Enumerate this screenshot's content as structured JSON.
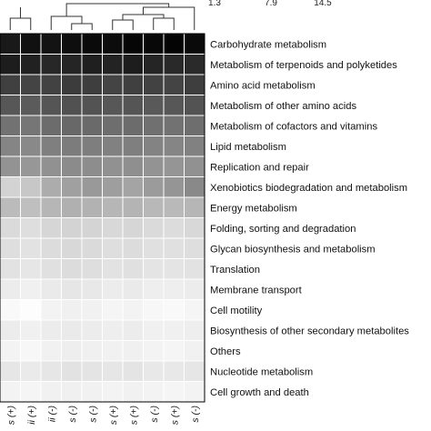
{
  "chart_data": {
    "type": "heatmap",
    "color_scale": {
      "ticks": [
        "1.3",
        "7.9",
        "14.5"
      ],
      "low_color": "#ffffff",
      "high_color": "#000000"
    },
    "rows": [
      "Carbohydrate metabolism",
      "Metabolism of terpenoids and polyketides",
      "Amino acid metabolism",
      "Metabolism of other amino acids",
      "Metabolism of cofactors and vitamins",
      "Lipid metabolism",
      "Replication and repair",
      "Xenobiotics biodegradation and metabolism",
      "Energy metabolism",
      "Folding, sorting and degradation",
      "Glycan biosynthesis and metabolism",
      "Translation",
      "Membrane transport",
      "Cell motility",
      "Biosynthesis of other secondary metabolites",
      "Others",
      "Nucleotide metabolism",
      "Cell growth and death"
    ],
    "columns": [
      "s (+)",
      "ii (+)",
      "ii (-)",
      "s (-)",
      "s (-)",
      "s (+)",
      "s (+)",
      "s (-)",
      "s (+)",
      "s (-)"
    ],
    "values": [
      [
        13.2,
        13.6,
        13.5,
        13.8,
        14.0,
        13.9,
        14.2,
        14.1,
        14.3,
        14.0
      ],
      [
        13.0,
        12.8,
        12.5,
        12.6,
        12.9,
        12.7,
        13.0,
        12.6,
        12.4,
        12.3
      ],
      [
        11.2,
        11.0,
        11.1,
        11.4,
        11.3,
        11.0,
        11.2,
        11.1,
        11.0,
        11.3
      ],
      [
        10.0,
        9.8,
        10.1,
        10.3,
        10.2,
        10.0,
        10.1,
        9.9,
        10.0,
        10.2
      ],
      [
        8.6,
        8.4,
        8.9,
        9.1,
        9.0,
        8.8,
        8.9,
        8.7,
        8.6,
        8.8
      ],
      [
        7.6,
        7.4,
        7.9,
        8.1,
        8.0,
        7.8,
        7.9,
        7.7,
        7.6,
        7.8
      ],
      [
        6.9,
        6.7,
        7.0,
        7.3,
        7.2,
        7.0,
        7.1,
        6.9,
        6.8,
        7.0
      ],
      [
        3.6,
        4.2,
        5.6,
        6.2,
        6.6,
        6.3,
        6.0,
        6.5,
        6.8,
        7.4
      ],
      [
        4.8,
        4.6,
        5.1,
        5.4,
        5.3,
        5.1,
        5.2,
        5.0,
        4.9,
        5.1
      ],
      [
        3.2,
        3.0,
        3.4,
        3.6,
        3.5,
        3.3,
        3.4,
        3.2,
        3.1,
        3.3
      ],
      [
        3.0,
        2.8,
        3.1,
        3.3,
        3.2,
        3.0,
        3.1,
        2.9,
        2.9,
        3.0
      ],
      [
        2.8,
        2.6,
        2.9,
        3.1,
        3.0,
        2.8,
        2.9,
        2.7,
        2.7,
        2.8
      ],
      [
        2.3,
        2.1,
        2.4,
        2.6,
        2.5,
        2.3,
        2.4,
        2.2,
        2.2,
        2.3
      ],
      [
        1.6,
        1.4,
        1.9,
        2.1,
        2.0,
        1.8,
        1.9,
        1.7,
        1.6,
        1.8
      ],
      [
        2.3,
        2.1,
        2.3,
        2.4,
        2.3,
        2.2,
        2.3,
        2.1,
        2.1,
        2.2
      ],
      [
        1.9,
        1.7,
        2.0,
        2.2,
        2.1,
        2.0,
        2.1,
        1.9,
        1.8,
        2.0
      ],
      [
        2.6,
        2.4,
        2.6,
        2.8,
        2.7,
        2.6,
        2.7,
        2.5,
        2.5,
        2.6
      ],
      [
        1.9,
        1.8,
        2.0,
        2.1,
        2.0,
        1.9,
        2.0,
        1.9,
        1.8,
        1.9
      ]
    ],
    "dendrogram": "columns"
  }
}
